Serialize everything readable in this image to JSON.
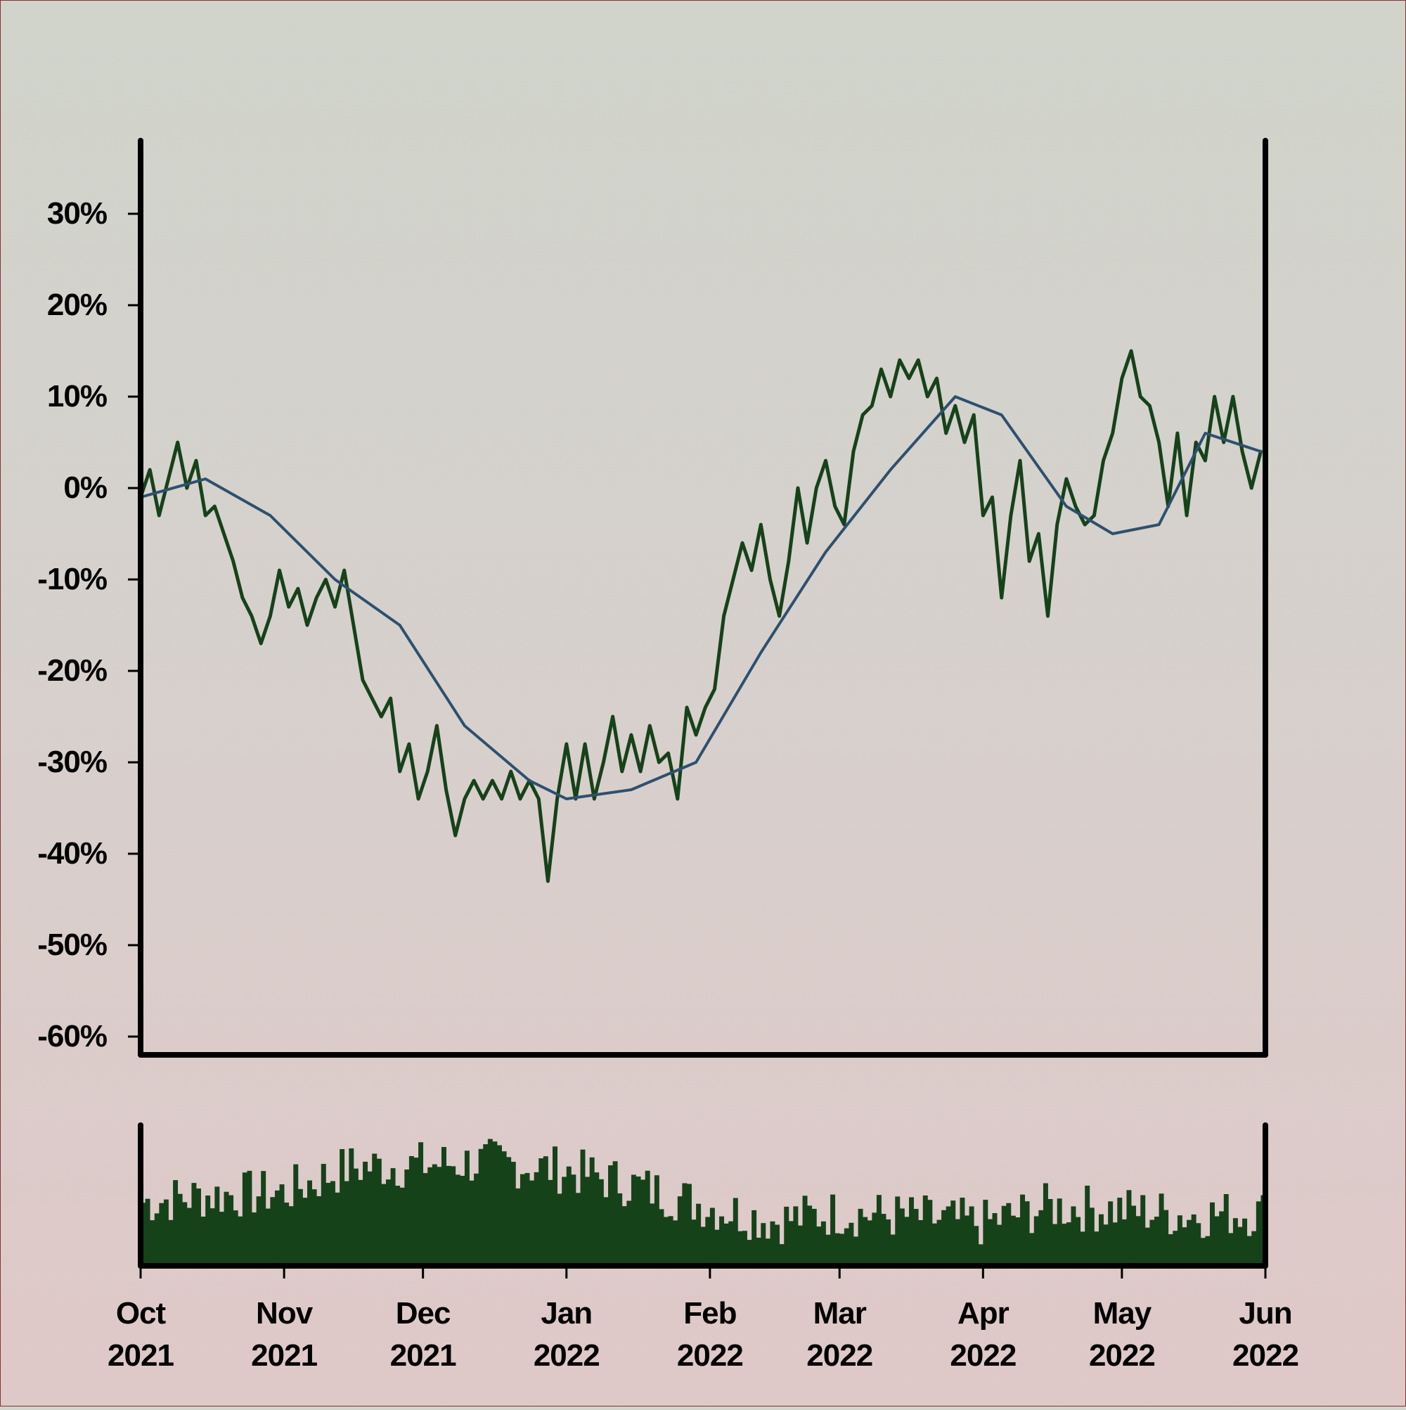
{
  "chart_data": {
    "type": "line",
    "title": "",
    "xlabel": "",
    "ylabel": "",
    "y_axis": {
      "ticks": [
        30,
        20,
        10,
        0,
        -10,
        -20,
        -30,
        -40,
        -50,
        -60
      ],
      "tick_labels": [
        "30%",
        "20%",
        "10%",
        "0%",
        "-10%",
        "-20%",
        "-30%",
        "-40%",
        "-50%",
        "-60%"
      ],
      "range": [
        -62,
        38
      ],
      "unit": "%"
    },
    "x_axis": {
      "range": [
        "2021-10-01",
        "2022-06-01"
      ],
      "ticks": [
        "2021-10-01",
        "2021-11-01",
        "2021-12-01",
        "2022-01-01",
        "2022-02-01",
        "2022-03-01",
        "2022-04-01",
        "2022-05-01",
        "2022-06-01"
      ],
      "tick_labels": [
        [
          "Oct",
          "2021"
        ],
        [
          "Nov",
          "2021"
        ],
        [
          "Dec",
          "2021"
        ],
        [
          "Jan",
          "2022"
        ],
        [
          "Feb",
          "2022"
        ],
        [
          "Mar",
          "2022"
        ],
        [
          "Apr",
          "2022"
        ],
        [
          "May",
          "2022"
        ],
        [
          "Jun",
          "2022"
        ]
      ]
    },
    "grid": false,
    "series": [
      {
        "role": "value",
        "color": "#16421a",
        "points": [
          [
            "2021-10-01",
            -1
          ],
          [
            "2021-10-03",
            2
          ],
          [
            "2021-10-05",
            -3
          ],
          [
            "2021-10-07",
            1
          ],
          [
            "2021-10-09",
            5
          ],
          [
            "2021-10-11",
            0
          ],
          [
            "2021-10-13",
            3
          ],
          [
            "2021-10-15",
            -3
          ],
          [
            "2021-10-17",
            -2
          ],
          [
            "2021-10-19",
            -5
          ],
          [
            "2021-10-21",
            -8
          ],
          [
            "2021-10-23",
            -12
          ],
          [
            "2021-10-25",
            -14
          ],
          [
            "2021-10-27",
            -17
          ],
          [
            "2021-10-29",
            -14
          ],
          [
            "2021-10-31",
            -9
          ],
          [
            "2021-11-02",
            -13
          ],
          [
            "2021-11-04",
            -11
          ],
          [
            "2021-11-06",
            -15
          ],
          [
            "2021-11-08",
            -12
          ],
          [
            "2021-11-10",
            -10
          ],
          [
            "2021-11-12",
            -13
          ],
          [
            "2021-11-14",
            -9
          ],
          [
            "2021-11-16",
            -15
          ],
          [
            "2021-11-18",
            -21
          ],
          [
            "2021-11-20",
            -23
          ],
          [
            "2021-11-22",
            -25
          ],
          [
            "2021-11-24",
            -23
          ],
          [
            "2021-11-26",
            -31
          ],
          [
            "2021-11-28",
            -28
          ],
          [
            "2021-11-30",
            -34
          ],
          [
            "2021-12-02",
            -31
          ],
          [
            "2021-12-04",
            -26
          ],
          [
            "2021-12-06",
            -33
          ],
          [
            "2021-12-08",
            -38
          ],
          [
            "2021-12-10",
            -34
          ],
          [
            "2021-12-12",
            -32
          ],
          [
            "2021-12-14",
            -34
          ],
          [
            "2021-12-16",
            -32
          ],
          [
            "2021-12-18",
            -34
          ],
          [
            "2021-12-20",
            -31
          ],
          [
            "2021-12-22",
            -34
          ],
          [
            "2021-12-24",
            -32
          ],
          [
            "2021-12-26",
            -34
          ],
          [
            "2021-12-28",
            -43
          ],
          [
            "2021-12-30",
            -34
          ],
          [
            "2022-01-01",
            -28
          ],
          [
            "2022-01-03",
            -34
          ],
          [
            "2022-01-05",
            -28
          ],
          [
            "2022-01-07",
            -34
          ],
          [
            "2022-01-09",
            -30
          ],
          [
            "2022-01-11",
            -25
          ],
          [
            "2022-01-13",
            -31
          ],
          [
            "2022-01-15",
            -27
          ],
          [
            "2022-01-17",
            -31
          ],
          [
            "2022-01-19",
            -26
          ],
          [
            "2022-01-21",
            -30
          ],
          [
            "2022-01-23",
            -29
          ],
          [
            "2022-01-25",
            -34
          ],
          [
            "2022-01-27",
            -24
          ],
          [
            "2022-01-29",
            -27
          ],
          [
            "2022-01-31",
            -24
          ],
          [
            "2022-02-02",
            -22
          ],
          [
            "2022-02-04",
            -14
          ],
          [
            "2022-02-06",
            -10
          ],
          [
            "2022-02-08",
            -6
          ],
          [
            "2022-02-10",
            -9
          ],
          [
            "2022-02-12",
            -4
          ],
          [
            "2022-02-14",
            -10
          ],
          [
            "2022-02-16",
            -14
          ],
          [
            "2022-02-18",
            -8
          ],
          [
            "2022-02-20",
            0
          ],
          [
            "2022-02-22",
            -6
          ],
          [
            "2022-02-24",
            0
          ],
          [
            "2022-02-26",
            3
          ],
          [
            "2022-02-28",
            -2
          ],
          [
            "2022-03-02",
            -4
          ],
          [
            "2022-03-04",
            4
          ],
          [
            "2022-03-06",
            8
          ],
          [
            "2022-03-08",
            9
          ],
          [
            "2022-03-10",
            13
          ],
          [
            "2022-03-12",
            10
          ],
          [
            "2022-03-14",
            14
          ],
          [
            "2022-03-16",
            12
          ],
          [
            "2022-03-18",
            14
          ],
          [
            "2022-03-20",
            10
          ],
          [
            "2022-03-22",
            12
          ],
          [
            "2022-03-24",
            6
          ],
          [
            "2022-03-26",
            9
          ],
          [
            "2022-03-28",
            5
          ],
          [
            "2022-03-30",
            8
          ],
          [
            "2022-04-01",
            -3
          ],
          [
            "2022-04-03",
            -1
          ],
          [
            "2022-04-05",
            -12
          ],
          [
            "2022-04-07",
            -3
          ],
          [
            "2022-04-09",
            3
          ],
          [
            "2022-04-11",
            -8
          ],
          [
            "2022-04-13",
            -5
          ],
          [
            "2022-04-15",
            -14
          ],
          [
            "2022-04-17",
            -4
          ],
          [
            "2022-04-19",
            1
          ],
          [
            "2022-04-21",
            -2
          ],
          [
            "2022-04-23",
            -4
          ],
          [
            "2022-04-25",
            -3
          ],
          [
            "2022-04-27",
            3
          ],
          [
            "2022-04-29",
            6
          ],
          [
            "2022-05-01",
            12
          ],
          [
            "2022-05-03",
            15
          ],
          [
            "2022-05-05",
            10
          ],
          [
            "2022-05-07",
            9
          ],
          [
            "2022-05-09",
            5
          ],
          [
            "2022-05-11",
            -2
          ],
          [
            "2022-05-13",
            6
          ],
          [
            "2022-05-15",
            -3
          ],
          [
            "2022-05-17",
            5
          ],
          [
            "2022-05-19",
            3
          ],
          [
            "2022-05-21",
            10
          ],
          [
            "2022-05-23",
            5
          ],
          [
            "2022-05-25",
            10
          ],
          [
            "2022-05-27",
            4
          ],
          [
            "2022-05-29",
            0
          ],
          [
            "2022-05-31",
            4
          ]
        ]
      },
      {
        "role": "moving-average",
        "color": "#2e506e",
        "points": [
          [
            "2021-10-01",
            -1
          ],
          [
            "2021-10-15",
            1
          ],
          [
            "2021-10-29",
            -3
          ],
          [
            "2021-11-12",
            -10
          ],
          [
            "2021-11-26",
            -15
          ],
          [
            "2021-12-10",
            -26
          ],
          [
            "2021-12-24",
            -32
          ],
          [
            "2022-01-01",
            -34
          ],
          [
            "2022-01-15",
            -33
          ],
          [
            "2022-01-29",
            -30
          ],
          [
            "2022-02-12",
            -18
          ],
          [
            "2022-02-26",
            -7
          ],
          [
            "2022-03-12",
            2
          ],
          [
            "2022-03-26",
            10
          ],
          [
            "2022-04-05",
            8
          ],
          [
            "2022-04-19",
            -2
          ],
          [
            "2022-04-29",
            -5
          ],
          [
            "2022-05-09",
            -4
          ],
          [
            "2022-05-19",
            6
          ],
          [
            "2022-05-31",
            4
          ]
        ]
      }
    ],
    "volume": {
      "color": "#16421a",
      "levels": [
        [
          "2021-10-01",
          0.45
        ],
        [
          "2021-10-15",
          0.5
        ],
        [
          "2021-11-01",
          0.52
        ],
        [
          "2021-11-15",
          0.7
        ],
        [
          "2021-12-01",
          0.72
        ],
        [
          "2021-12-15",
          0.74
        ],
        [
          "2022-01-01",
          0.68
        ],
        [
          "2022-01-15",
          0.58
        ],
        [
          "2022-02-01",
          0.42
        ],
        [
          "2022-02-15",
          0.32
        ],
        [
          "2022-03-01",
          0.38
        ],
        [
          "2022-03-15",
          0.35
        ],
        [
          "2022-04-01",
          0.3
        ],
        [
          "2022-04-15",
          0.42
        ],
        [
          "2022-05-01",
          0.4
        ],
        [
          "2022-05-15",
          0.36
        ],
        [
          "2022-06-01",
          0.38
        ]
      ]
    }
  }
}
